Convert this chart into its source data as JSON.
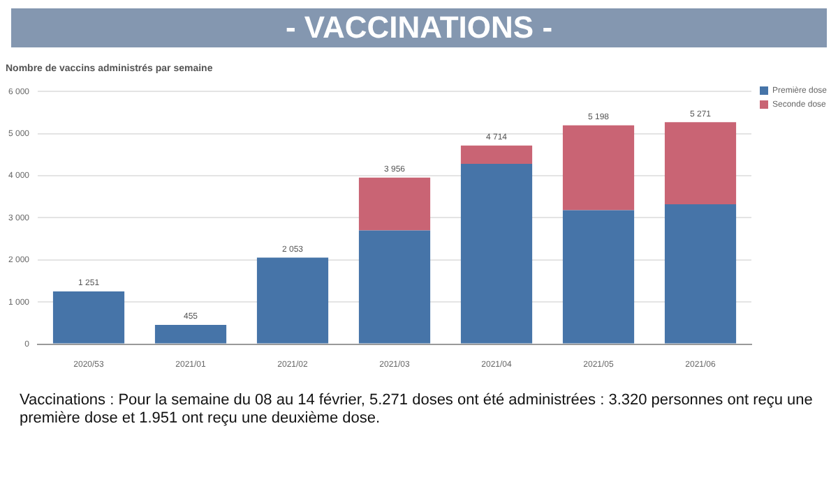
{
  "chart_data": {
    "type": "bar",
    "title": "- VACCINATIONS -",
    "subtitle": "Nombre de vaccins administrés par semaine",
    "categories": [
      "2020/53",
      "2021/01",
      "2021/02",
      "2021/03",
      "2021/04",
      "2021/05",
      "2021/06"
    ],
    "series": [
      {
        "name": "Première dose",
        "color": "#4674a8",
        "values": [
          1251,
          455,
          2053,
          2700,
          4280,
          3180,
          3320
        ]
      },
      {
        "name": "Seconde dose",
        "color": "#c96474",
        "values": [
          0,
          0,
          0,
          1256,
          434,
          2018,
          1951
        ]
      }
    ],
    "stacked": true,
    "totals": [
      "1 251",
      "455",
      "2 053",
      "3 956",
      "4 714",
      "5 198",
      "5 271"
    ],
    "ylim": [
      0,
      6000
    ],
    "yticks": [
      {
        "value": 0,
        "label": "0"
      },
      {
        "value": 1000,
        "label": "1 000"
      },
      {
        "value": 2000,
        "label": "2 000"
      },
      {
        "value": 3000,
        "label": "3 000"
      },
      {
        "value": 4000,
        "label": "4 000"
      },
      {
        "value": 5000,
        "label": "5 000"
      },
      {
        "value": 6000,
        "label": "6 000"
      }
    ],
    "grid": "y",
    "legend": "top right",
    "annotations": [
      "Vaccinations : Pour la semaine du 08 au 14 février, 5.271 doses ont été administrées : 3.320 personnes ont reçu une première dose et 1.951 ont reçu une deuxième dose."
    ]
  }
}
